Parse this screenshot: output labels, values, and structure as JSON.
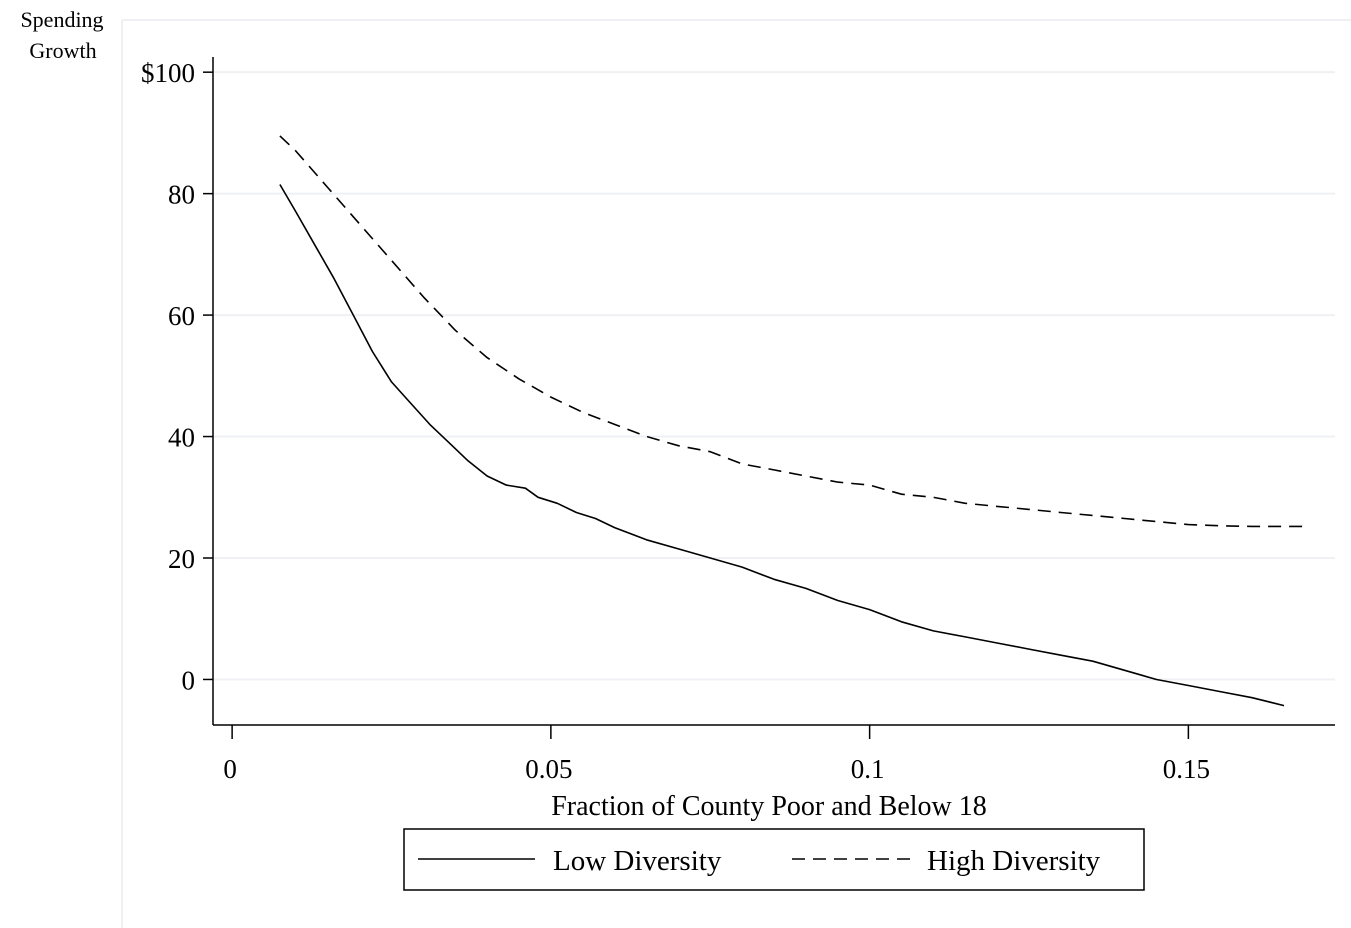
{
  "chart_data": {
    "type": "line",
    "title": "",
    "ylabel_lines": [
      "Spending",
      "Growth"
    ],
    "xlabel": "Fraction of County Poor and Below 18",
    "xlim": [
      -0.003,
      0.173
    ],
    "ylim": [
      -7.5,
      102.5
    ],
    "x_ticks": [
      0,
      0.05,
      0.1,
      0.15
    ],
    "x_tick_labels": [
      "0",
      "0.05",
      "0.1",
      "0.15"
    ],
    "y_ticks": [
      0,
      20,
      40,
      60,
      80,
      100
    ],
    "y_tick_labels": [
      "0",
      "20",
      "40",
      "60",
      "80",
      "$100"
    ],
    "grid": "horizontal",
    "legend_position": "bottom",
    "series": [
      {
        "name": "Low Diversity",
        "style": "solid",
        "color": "#000000",
        "x": [
          0.0075,
          0.01,
          0.013,
          0.016,
          0.019,
          0.022,
          0.025,
          0.028,
          0.031,
          0.034,
          0.037,
          0.04,
          0.043,
          0.046,
          0.048,
          0.051,
          0.054,
          0.057,
          0.06,
          0.065,
          0.07,
          0.075,
          0.08,
          0.085,
          0.09,
          0.095,
          0.1,
          0.105,
          0.11,
          0.115,
          0.12,
          0.125,
          0.13,
          0.135,
          0.14,
          0.145,
          0.15,
          0.155,
          0.16,
          0.165
        ],
        "values": [
          81.5,
          77.0,
          71.5,
          66.0,
          60.0,
          54.0,
          49.0,
          45.5,
          42.0,
          39.0,
          36.0,
          33.5,
          32.0,
          31.5,
          30.0,
          29.0,
          27.5,
          26.5,
          25.0,
          23.0,
          21.5,
          20.0,
          18.5,
          16.5,
          15.0,
          13.0,
          11.5,
          9.5,
          8.0,
          7.0,
          6.0,
          5.0,
          4.0,
          3.0,
          1.5,
          0.0,
          -1.0,
          -2.0,
          -3.0,
          -4.3
        ]
      },
      {
        "name": "High Diversity",
        "style": "dashed",
        "color": "#000000",
        "x": [
          0.0075,
          0.01,
          0.015,
          0.02,
          0.025,
          0.03,
          0.035,
          0.04,
          0.045,
          0.05,
          0.055,
          0.06,
          0.065,
          0.07,
          0.075,
          0.08,
          0.085,
          0.09,
          0.095,
          0.1,
          0.105,
          0.11,
          0.115,
          0.12,
          0.125,
          0.13,
          0.135,
          0.14,
          0.145,
          0.15,
          0.155,
          0.16,
          0.165,
          0.169
        ],
        "values": [
          89.5,
          87.0,
          81.0,
          75.0,
          69.0,
          63.0,
          57.5,
          53.0,
          49.5,
          46.5,
          44.0,
          42.0,
          40.0,
          38.5,
          37.5,
          35.5,
          34.5,
          33.5,
          32.5,
          32.0,
          30.5,
          30.0,
          29.0,
          28.5,
          28.0,
          27.5,
          27.0,
          26.5,
          26.0,
          25.5,
          25.3,
          25.2,
          25.2,
          25.2
        ]
      }
    ]
  }
}
